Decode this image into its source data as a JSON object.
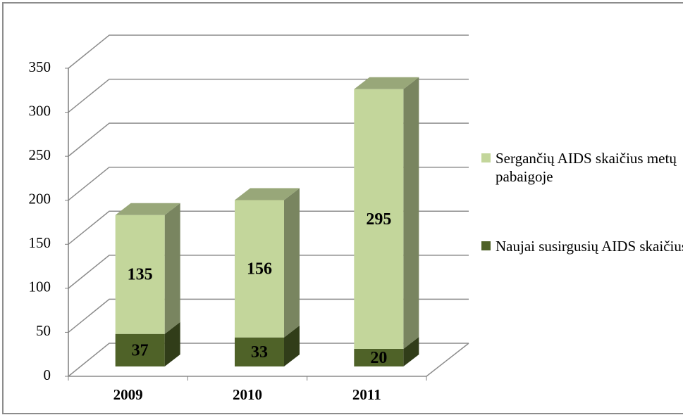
{
  "chart_data": {
    "type": "bar3d_stacked",
    "categories": [
      "2009",
      "2010",
      "2011"
    ],
    "series": [
      {
        "name": "Naujai susirgusių AIDS skaičius",
        "color": "#4f6228",
        "values": [
          37,
          33,
          20
        ]
      },
      {
        "name": "Sergančių AIDS skaičius metų pabaigoje",
        "color": "#c3d69b",
        "values": [
          135,
          156,
          295
        ]
      }
    ],
    "ylim": [
      0,
      350
    ],
    "yticks": [
      0,
      50,
      100,
      150,
      200,
      250,
      300,
      350
    ],
    "grid": true,
    "legend": "right"
  }
}
